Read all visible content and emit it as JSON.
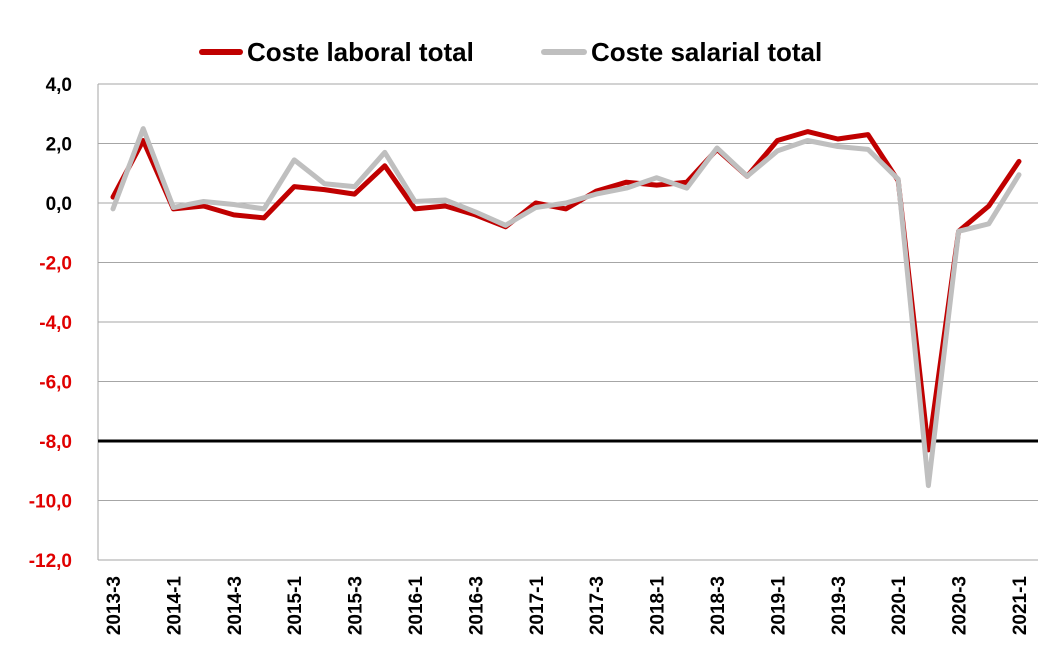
{
  "chart_data": {
    "type": "line",
    "x": [
      "2013-3",
      "2013-4",
      "2014-1",
      "2014-2",
      "2014-3",
      "2014-4",
      "2015-1",
      "2015-2",
      "2015-3",
      "2015-4",
      "2016-1",
      "2016-2",
      "2016-3",
      "2016-4",
      "2017-1",
      "2017-2",
      "2017-3",
      "2017-4",
      "2018-1",
      "2018-2",
      "2018-3",
      "2018-4",
      "2019-1",
      "2019-2",
      "2019-3",
      "2019-4",
      "2020-1",
      "2020-2",
      "2020-3",
      "2020-4",
      "2021-1"
    ],
    "x_tick_labels": [
      "2013-3",
      "2014-1",
      "2014-3",
      "2015-1",
      "2015-3",
      "2016-1",
      "2016-3",
      "2017-1",
      "2017-3",
      "2018-1",
      "2018-3",
      "2019-1",
      "2019-3",
      "2020-1",
      "2020-3",
      "2021-1"
    ],
    "ylim": [
      -12,
      4
    ],
    "y_ticks": [
      "4,0",
      "2,0",
      "0,0",
      "-2,0",
      "-4,0",
      "-6,0",
      "-8,0",
      "-10,0",
      "-12,0"
    ],
    "reference_line": -8,
    "grid": true,
    "legend_position": "top-center",
    "series": [
      {
        "name": "Coste laboral total",
        "color": "#C00000",
        "values": [
          0.2,
          2.1,
          -0.2,
          -0.1,
          -0.4,
          -0.5,
          0.55,
          0.45,
          0.3,
          1.25,
          -0.2,
          -0.1,
          -0.4,
          -0.8,
          0.0,
          -0.2,
          0.4,
          0.7,
          0.6,
          0.7,
          1.8,
          0.9,
          2.1,
          2.4,
          2.15,
          2.3,
          0.75,
          -8.3,
          -0.95,
          -0.1,
          1.4
        ]
      },
      {
        "name": "Coste salarial total",
        "color": "#BFBFBF",
        "values": [
          -0.2,
          2.5,
          -0.15,
          0.05,
          -0.05,
          -0.2,
          1.45,
          0.65,
          0.55,
          1.7,
          0.05,
          0.1,
          -0.3,
          -0.75,
          -0.15,
          0.0,
          0.3,
          0.5,
          0.85,
          0.5,
          1.85,
          0.9,
          1.75,
          2.1,
          1.9,
          1.8,
          0.8,
          -9.5,
          -0.95,
          -0.7,
          0.95
        ]
      }
    ],
    "axis_color": "#000000",
    "negative_tick_color": "#E00000",
    "positive_tick_color": "#000000",
    "grid_color": "#A6A6A6"
  }
}
